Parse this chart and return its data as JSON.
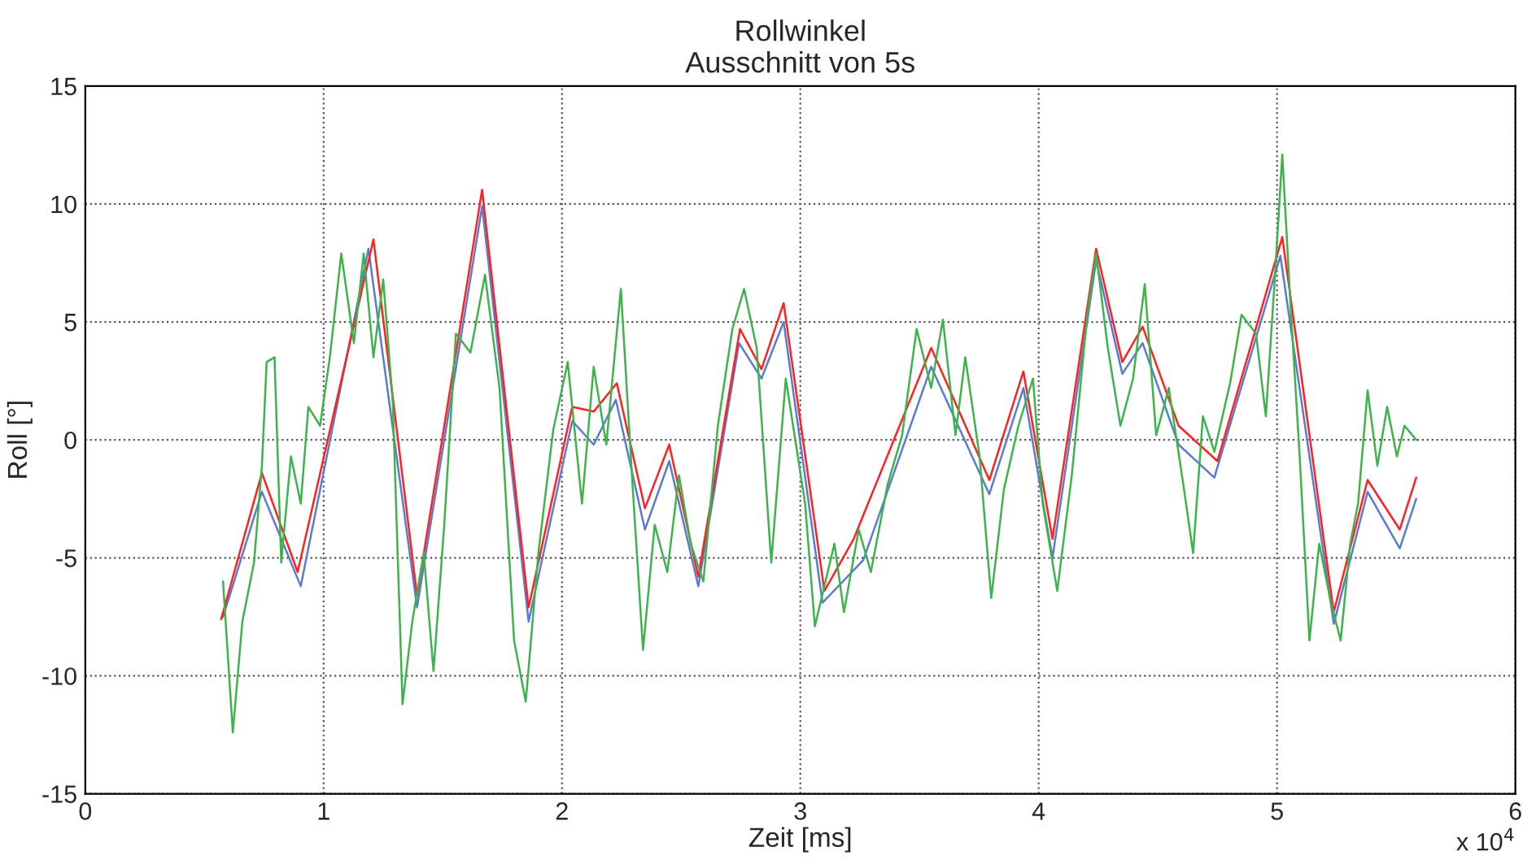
{
  "chart_data": {
    "type": "line",
    "title": "Rollwinkel\nAusschnitt von 5s",
    "xlabel": "Zeit [ms]",
    "ylabel": "Roll [°]",
    "xlim": [
      0,
      6
    ],
    "xticks": [
      0,
      1,
      2,
      3,
      4,
      5,
      6
    ],
    "ylim": [
      -15,
      15
    ],
    "yticks": [
      -15,
      -10,
      -5,
      0,
      5,
      10,
      15
    ],
    "grid": true,
    "line_style": "solid",
    "annotations": [
      "x 10$^{4}$"
    ],
    "series": [
      {
        "color": "#5a7bd0",
        "x": [
          0.578,
          0.741,
          0.904,
          1.188,
          1.392,
          1.665,
          1.86,
          2.043,
          2.133,
          2.226,
          2.348,
          2.45,
          2.572,
          2.743,
          2.837,
          2.93,
          3.093,
          3.264,
          3.549,
          3.793,
          3.936,
          4.058,
          4.241,
          4.351,
          4.436,
          4.587,
          4.737,
          5.014,
          5.238,
          5.38,
          5.515,
          5.584
        ],
        "values": [
          -7.5,
          -2.2,
          -6.2,
          8.1,
          -7.1,
          9.9,
          -7.7,
          0.8,
          -0.2,
          1.7,
          -3.8,
          -0.9,
          -6.2,
          4.1,
          2.6,
          5.0,
          -6.9,
          -5.1,
          3.1,
          -2.3,
          2.2,
          -5.0,
          7.6,
          2.8,
          4.1,
          -0.2,
          -1.6,
          7.8,
          -7.8,
          -2.2,
          -4.6,
          -2.5
        ]
      },
      {
        "color": "#ff2020",
        "x": [
          0.57,
          0.741,
          0.891,
          1.209,
          1.392,
          1.665,
          1.86,
          2.043,
          2.133,
          2.23,
          2.348,
          2.45,
          2.572,
          2.747,
          2.837,
          2.93,
          3.101,
          3.224,
          3.549,
          3.793,
          3.936,
          4.058,
          4.241,
          4.351,
          4.436,
          4.587,
          4.75,
          5.022,
          5.238,
          5.38,
          5.515,
          5.584
        ],
        "values": [
          -7.6,
          -1.4,
          -5.6,
          8.5,
          -6.6,
          10.6,
          -7.1,
          1.4,
          1.2,
          2.4,
          -2.9,
          -0.2,
          -5.8,
          4.7,
          3.0,
          5.8,
          -6.4,
          -4.2,
          3.9,
          -1.7,
          2.9,
          -4.2,
          8.1,
          3.3,
          4.8,
          0.6,
          -0.9,
          8.6,
          -7.3,
          -1.7,
          -3.8,
          -1.6
        ]
      },
      {
        "color": "#3cb44b",
        "x": [
          0.578,
          0.619,
          0.659,
          0.708,
          0.741,
          0.761,
          0.794,
          0.822,
          0.863,
          0.904,
          0.936,
          0.985,
          1.026,
          1.074,
          1.127,
          1.168,
          1.209,
          1.25,
          1.29,
          1.331,
          1.372,
          1.42,
          1.461,
          1.506,
          1.555,
          1.616,
          1.677,
          1.738,
          1.799,
          1.848,
          1.901,
          1.963,
          2.024,
          2.084,
          2.133,
          2.186,
          2.247,
          2.296,
          2.34,
          2.389,
          2.442,
          2.491,
          2.54,
          2.593,
          2.654,
          2.715,
          2.764,
          2.817,
          2.878,
          2.939,
          3.02,
          3.061,
          3.143,
          3.183,
          3.245,
          3.296,
          3.366,
          3.427,
          3.488,
          3.549,
          3.598,
          3.651,
          3.692,
          3.752,
          3.801,
          3.854,
          3.915,
          3.976,
          4.017,
          4.078,
          4.139,
          4.202,
          4.241,
          4.29,
          4.343,
          4.396,
          4.445,
          4.493,
          4.546,
          4.607,
          4.648,
          4.689,
          4.737,
          4.803,
          4.851,
          4.912,
          4.953,
          4.993,
          5.022,
          5.055,
          5.095,
          5.136,
          5.177,
          5.226,
          5.267,
          5.307,
          5.34,
          5.38,
          5.421,
          5.462,
          5.503,
          5.535,
          5.584
        ],
        "values": [
          -6.0,
          -12.4,
          -7.7,
          -5.2,
          -1.1,
          3.3,
          3.5,
          -5.2,
          -0.7,
          -2.7,
          1.4,
          0.6,
          3.5,
          7.9,
          4.1,
          7.9,
          3.5,
          6.8,
          1.6,
          -11.2,
          -7.7,
          -4.8,
          -9.8,
          -3.6,
          4.5,
          3.7,
          7.0,
          2.2,
          -8.5,
          -11.1,
          -4.8,
          0.4,
          3.3,
          -2.7,
          3.1,
          -0.2,
          6.4,
          -1.9,
          -8.9,
          -3.6,
          -5.6,
          -1.5,
          -4.4,
          -6.0,
          0.6,
          4.7,
          6.4,
          3.9,
          -5.2,
          2.6,
          -2.7,
          -7.9,
          -4.4,
          -7.3,
          -3.8,
          -5.6,
          -1.9,
          0.2,
          4.7,
          2.2,
          5.1,
          0.2,
          3.5,
          -0.7,
          -6.7,
          -2.1,
          0.6,
          2.6,
          -2.7,
          -6.4,
          -1.5,
          5.1,
          7.9,
          3.9,
          0.6,
          2.6,
          6.6,
          0.2,
          2.2,
          -1.9,
          -4.8,
          1.0,
          -0.5,
          2.4,
          5.3,
          4.5,
          1.0,
          7.2,
          12.1,
          6.0,
          -0.7,
          -8.5,
          -4.4,
          -6.9,
          -8.5,
          -4.4,
          -2.7,
          2.1,
          -1.1,
          1.4,
          -0.7,
          0.6,
          0.0
        ]
      }
    ]
  }
}
